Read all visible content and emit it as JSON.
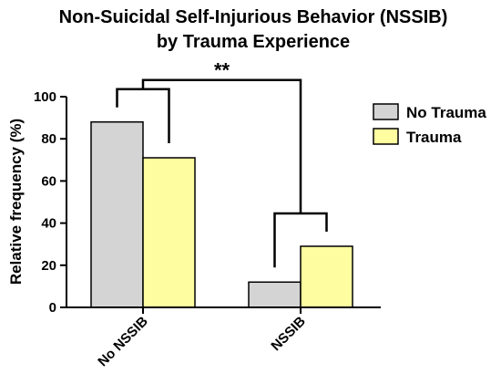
{
  "chart_data": {
    "type": "bar",
    "title": "Non-Suicidal Self-Injurious Behavior (NSSIB)",
    "subtitle": "by Trauma Experience",
    "ylabel": "Relative frequency (%)",
    "xlabel": "",
    "ylim": [
      0,
      100
    ],
    "yticks": [
      0,
      20,
      40,
      60,
      80,
      100
    ],
    "categories": [
      "No NSSIB",
      "NSSIB"
    ],
    "series": [
      {
        "name": "No Trauma",
        "color": "#d4d4d4",
        "values": [
          88,
          12
        ]
      },
      {
        "name": "Trauma",
        "color": "#fefea0",
        "values": [
          71,
          29
        ]
      }
    ],
    "legend_position": "right",
    "grid": false,
    "annotation": {
      "text": "**",
      "comparison": "No NSSIB vs NSSIB"
    }
  }
}
